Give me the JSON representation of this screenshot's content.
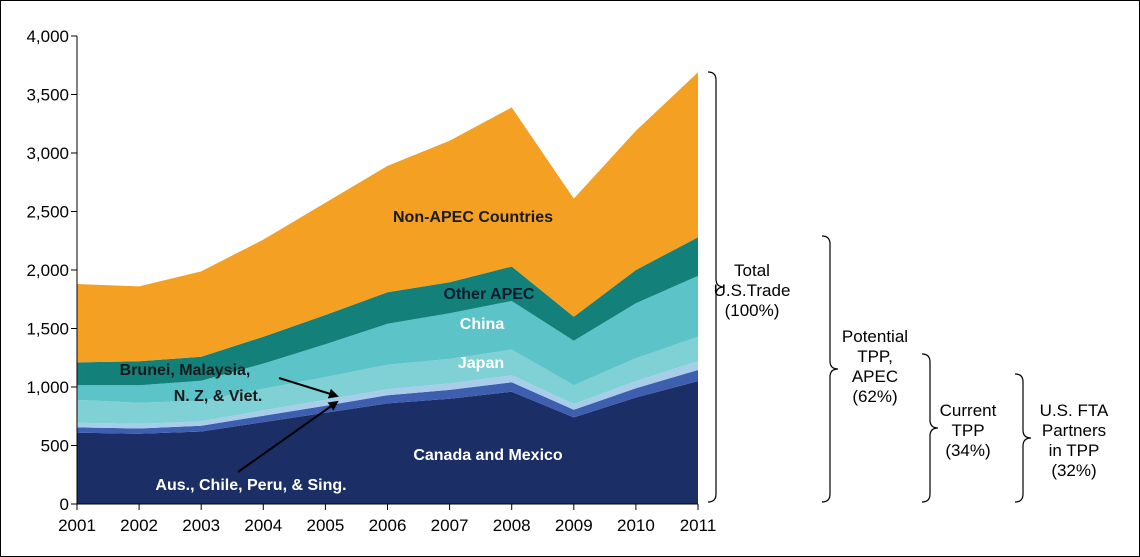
{
  "chart_data": {
    "type": "area",
    "stacked": true,
    "x": [
      2001,
      2002,
      2003,
      2004,
      2005,
      2006,
      2007,
      2008,
      2009,
      2010,
      2011
    ],
    "ylim": [
      0,
      4000
    ],
    "yticks": [
      "0",
      "500",
      "1,000",
      "1,500",
      "2,000",
      "2,500",
      "3,000",
      "3,500",
      "4,000"
    ],
    "xticks": [
      "2001",
      "2002",
      "2003",
      "2004",
      "2005",
      "2006",
      "2007",
      "2008",
      "2009",
      "2010",
      "2011"
    ],
    "grid": false,
    "series": [
      {
        "name": "Canada and Mexico",
        "color": "#1b2f66",
        "values": [
          610,
          600,
          620,
          700,
          780,
          860,
          900,
          960,
          740,
          910,
          1050
        ]
      },
      {
        "name": "Aus., Chile, Peru, & Sing.",
        "color": "#3e5fb0",
        "values": [
          45,
          45,
          48,
          55,
          60,
          70,
          75,
          80,
          65,
          80,
          95
        ]
      },
      {
        "name": "Brunei, Malaysia, N. Z, & Viet.",
        "color": "#a8cde8",
        "values": [
          40,
          40,
          40,
          45,
          50,
          50,
          55,
          60,
          50,
          60,
          75
        ]
      },
      {
        "name": "Japan",
        "color": "#7fd1d6",
        "values": [
          195,
          180,
          175,
          185,
          195,
          210,
          210,
          220,
          160,
          195,
          210
        ]
      },
      {
        "name": "China",
        "color": "#5cc4c9",
        "values": [
          125,
          150,
          170,
          215,
          280,
          350,
          390,
          415,
          380,
          470,
          520
        ]
      },
      {
        "name": "Other APEC",
        "color": "#138079",
        "values": [
          195,
          205,
          205,
          230,
          250,
          270,
          265,
          295,
          205,
          285,
          330
        ]
      },
      {
        "name": "Non-APEC Countries",
        "color": "#f3a023",
        "values": [
          670,
          640,
          730,
          830,
          960,
          1080,
          1210,
          1360,
          1010,
          1190,
          1410
        ]
      }
    ],
    "labels": {
      "non_apec": "Non-APEC Countries",
      "other_apec": "Other APEC",
      "china": "China",
      "japan": "Japan",
      "brunei_line1": "Brunei, Malaysia,",
      "brunei_line2": "N. Z, & Viet.",
      "canada": "Canada and Mexico",
      "aus": "Aus., Chile, Peru, & Sing."
    },
    "brackets": [
      {
        "lines": [
          "Total",
          "U.S.Trade",
          "(100%)"
        ]
      },
      {
        "lines": [
          "Potential",
          "TPP,",
          "APEC",
          "(62%)"
        ]
      },
      {
        "lines": [
          "Current",
          "TPP",
          "(34%)"
        ]
      },
      {
        "lines": [
          "U.S. FTA",
          "Partners",
          "in TPP",
          "(32%)"
        ]
      }
    ]
  }
}
